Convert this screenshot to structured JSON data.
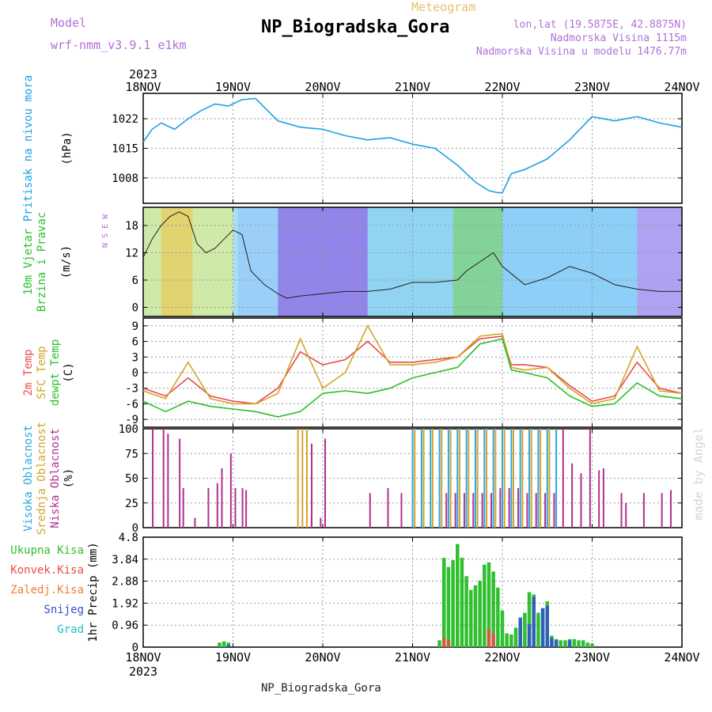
{
  "header": {
    "model_label": "Model",
    "model_name": "wrf-nmm_v3.9.1 e1km",
    "title": "NP_Biogradska_Gora",
    "meteogram_label": "Meteogram",
    "lonlat": "lon,lat (19.5875E, 42.8875N)",
    "elevation": "Nadmorska Visina 1115m",
    "model_elevation": "Nadmorska Visina u modelu 1476.77m",
    "footer_station": "NP_Biogradska_Gora",
    "made_by": "made by Angel"
  },
  "colors": {
    "pressure": "#1ea0e6",
    "temp2m": "#e84b4b",
    "sfc": "#d4a32a",
    "dewpoint": "#28c028",
    "high_cloud": "#2aa8e0",
    "mid_cloud": "#d4a32a",
    "low_cloud": "#b0308f",
    "total_precip": "#2fbf2f",
    "conv_precip": "#e84b4b",
    "freezing_precip": "#f08030",
    "snow": "#3050d0",
    "hail": "#20c0c0",
    "header_purple": "#b070d8",
    "header_gold": "#e8c070"
  },
  "chart_data": {
    "type": "meteogram",
    "x_year": "2023",
    "x_ticks": [
      "18NOV",
      "19NOV",
      "20NOV",
      "21NOV",
      "22NOV",
      "23NOV",
      "24NOV"
    ],
    "x_range_days": [
      0,
      6
    ],
    "panels": [
      {
        "id": "pressure",
        "ylabel": [
          "Pritisak na nivou mora",
          "(hPa)"
        ],
        "yticks": [
          "1008",
          "1015",
          "1022"
        ],
        "ylim": [
          1002,
          1028
        ],
        "series": [
          {
            "name": "Pritisak na nivou mora",
            "x": [
              0,
              0.1,
              0.2,
              0.35,
              0.5,
              0.65,
              0.8,
              0.95,
              1.1,
              1.25,
              1.5,
              1.75,
              2.0,
              2.25,
              2.5,
              2.75,
              3.0,
              3.25,
              3.5,
              3.7,
              3.85,
              3.95,
              4.0,
              4.1,
              4.25,
              4.5,
              4.75,
              5.0,
              5.25,
              5.5,
              5.75,
              6.0
            ],
            "y": [
              1016.5,
              1019.5,
              1021,
              1019.5,
              1022,
              1024,
              1025.5,
              1025,
              1026.5,
              1026.8,
              1021.5,
              1020,
              1019.5,
              1018,
              1017,
              1017.5,
              1016,
              1015,
              1011,
              1007,
              1005,
              1004.5,
              1004.5,
              1009,
              1010,
              1012.5,
              1017,
              1022.5,
              1021.5,
              1022.5,
              1021,
              1020
            ]
          }
        ]
      },
      {
        "id": "wind",
        "ylabel": [
          "10m Vjetar",
          "Brzina i Pravac",
          "(m/s)"
        ],
        "yticks": [
          "0",
          "6",
          "12",
          "18"
        ],
        "ylim": [
          -2,
          22
        ],
        "compass": "N S E W",
        "series": [
          {
            "name": "10m Vjetar",
            "x": [
              0,
              0.1,
              0.2,
              0.3,
              0.4,
              0.5,
              0.6,
              0.7,
              0.8,
              0.9,
              1.0,
              1.1,
              1.2,
              1.35,
              1.5,
              1.6,
              1.75,
              2.0,
              2.25,
              2.5,
              2.75,
              3.0,
              3.25,
              3.5,
              3.6,
              3.75,
              3.9,
              4.0,
              4.25,
              4.5,
              4.75,
              5.0,
              5.25,
              5.5,
              5.75,
              6.0
            ],
            "y": [
              11,
              15,
              18,
              20,
              21,
              20,
              14,
              12,
              13,
              15,
              17,
              16,
              8,
              5,
              3,
              2,
              2.5,
              3,
              3.5,
              3.5,
              4,
              5.5,
              5.5,
              6,
              8,
              10,
              12,
              9,
              5,
              6.5,
              9,
              7.5,
              5,
              4,
              3.5,
              3.5
            ]
          }
        ]
      },
      {
        "id": "temperature",
        "ylabel": [
          "2m Temp",
          "SFC Temp",
          "dewpt Temp",
          "(C)"
        ],
        "yticks": [
          "-9",
          "-6",
          "-3",
          "0",
          "3",
          "6",
          "9"
        ],
        "ylim": [
          -10.5,
          10.5
        ],
        "series": [
          {
            "name": "2m Temp",
            "x": [
              0,
              0.25,
              0.5,
              0.75,
              1.0,
              1.25,
              1.5,
              1.75,
              2.0,
              2.25,
              2.5,
              2.75,
              3.0,
              3.25,
              3.5,
              3.75,
              4.0,
              4.1,
              4.25,
              4.5,
              4.75,
              5.0,
              5.25,
              5.5,
              5.75,
              6.0
            ],
            "y": [
              -3,
              -4.5,
              -1,
              -4.5,
              -5.5,
              -6,
              -3,
              4,
              1.5,
              2.5,
              6,
              2,
              2,
              2.5,
              3,
              6.5,
              7,
              1.5,
              1.5,
              1,
              -2.5,
              -5.5,
              -4.5,
              2,
              -3,
              -4
            ]
          },
          {
            "name": "SFC Temp",
            "x": [
              0,
              0.25,
              0.5,
              0.75,
              1.0,
              1.25,
              1.5,
              1.75,
              2.0,
              2.25,
              2.5,
              2.75,
              3.0,
              3.25,
              3.5,
              3.75,
              4.0,
              4.1,
              4.25,
              4.5,
              4.75,
              5.0,
              5.25,
              5.5,
              5.75,
              6.0
            ],
            "y": [
              -3.5,
              -5,
              2,
              -5,
              -6,
              -6,
              -4,
              6.5,
              -3,
              0,
              9,
              1.5,
              1.5,
              2,
              3,
              7,
              7.5,
              1,
              0.5,
              1,
              -3,
              -6,
              -5,
              5,
              -3.5,
              -4
            ]
          },
          {
            "name": "dewpt Temp",
            "x": [
              0,
              0.25,
              0.5,
              0.75,
              1.0,
              1.25,
              1.5,
              1.75,
              2.0,
              2.25,
              2.5,
              2.75,
              3.0,
              3.25,
              3.5,
              3.75,
              4.0,
              4.1,
              4.25,
              4.5,
              4.75,
              5.0,
              5.25,
              5.5,
              5.75,
              6.0
            ],
            "y": [
              -5.5,
              -7.5,
              -5.5,
              -6.5,
              -7,
              -7.5,
              -8.5,
              -7.5,
              -4,
              -3.5,
              -4,
              -3,
              -1,
              0,
              1,
              5.5,
              6.5,
              0.5,
              0,
              -1,
              -4.5,
              -6.5,
              -6,
              -2,
              -4.5,
              -5
            ]
          }
        ]
      },
      {
        "id": "clouds",
        "ylabel": [
          "Visoka Oblacnost",
          "Srednja Oblacnost",
          "Niska Oblacnost",
          "(%)"
        ],
        "yticks": [
          "0",
          "25",
          "50",
          "75",
          "100"
        ],
        "ylim": [
          0,
          100
        ],
        "series": [
          {
            "name": "Visoka Oblacnost",
            "x": [
              3.0,
              3.1,
              3.2,
              3.3,
              3.4,
              3.5,
              3.6,
              3.7,
              3.8,
              3.9,
              4.0,
              4.1,
              4.2,
              4.3,
              4.4,
              4.5,
              4.6
            ],
            "y": [
              100,
              100,
              100,
              100,
              100,
              100,
              100,
              100,
              100,
              100,
              100,
              100,
              100,
              100,
              100,
              100,
              100
            ]
          },
          {
            "name": "Srednja Oblacnost",
            "x": [
              1.75,
              1.8,
              1.85,
              1.9,
              3.05,
              3.15,
              3.25,
              3.35,
              3.45,
              3.55,
              3.65,
              3.75,
              3.85,
              3.95,
              4.05,
              4.15,
              4.25,
              4.35,
              4.45,
              4.55
            ],
            "y": [
              100,
              100,
              100,
              10,
              100,
              100,
              100,
              100,
              100,
              100,
              100,
              100,
              100,
              100,
              100,
              100,
              100,
              100,
              100,
              100
            ]
          },
          {
            "name": "Niska Oblacnost",
            "x": [
              0.08,
              0.2,
              0.25,
              0.38,
              0.42,
              0.55,
              0.7,
              0.8,
              0.85,
              0.95,
              1.0,
              1.08,
              1.12,
              1.85,
              1.95,
              2.0,
              2.5,
              2.7,
              2.85,
              3.35,
              3.45,
              3.55,
              3.65,
              3.75,
              3.85,
              3.95,
              4.05,
              4.15,
              4.25,
              4.35,
              4.45,
              4.55,
              4.65,
              4.75,
              4.85,
              4.95,
              5.05,
              5.1,
              5.3,
              5.35,
              5.55,
              5.75,
              5.85
            ],
            "y": [
              100,
              100,
              95,
              90,
              40,
              10,
              40,
              45,
              60,
              75,
              40,
              40,
              38,
              85,
              10,
              90,
              35,
              40,
              35,
              35,
              35,
              35,
              35,
              35,
              35,
              40,
              40,
              40,
              35,
              35,
              35,
              35,
              100,
              65,
              55,
              100,
              58,
              60,
              35,
              25,
              35,
              35,
              38
            ]
          }
        ]
      },
      {
        "id": "precip",
        "ylabel": [
          "1hr Precip (mm)"
        ],
        "legend": [
          "Ukupna Kisa",
          "Konvek.Kisa",
          "Zaledj.Kisa",
          "Snijeg",
          "Grad"
        ],
        "yticks": [
          "0",
          "0.96",
          "1.92",
          "2.88",
          "3.84",
          "4.8"
        ],
        "ylim": [
          0,
          4.8
        ],
        "series": [
          {
            "name": "Ukupna Kisa",
            "x": [
              0.85,
              0.9,
              0.95,
              3.3,
              3.35,
              3.4,
              3.45,
              3.5,
              3.55,
              3.6,
              3.65,
              3.7,
              3.75,
              3.8,
              3.85,
              3.9,
              3.95,
              4.0,
              4.05,
              4.1,
              4.15,
              4.2,
              4.25,
              4.3,
              4.35,
              4.4,
              4.45,
              4.5,
              4.55,
              4.6,
              4.65,
              4.7,
              4.75,
              4.8,
              4.85,
              4.9,
              4.95,
              5.0
            ],
            "y": [
              0.2,
              0.25,
              0.2,
              0.3,
              3.9,
              3.5,
              3.8,
              4.5,
              3.9,
              3.1,
              2.5,
              2.7,
              2.9,
              3.6,
              3.7,
              3.3,
              2.6,
              1.6,
              0.6,
              0.55,
              0.85,
              1.2,
              1.5,
              2.4,
              2.3,
              1.5,
              1.7,
              2.0,
              0.5,
              0.35,
              0.3,
              0.3,
              0.35,
              0.35,
              0.3,
              0.3,
              0.2,
              0.15
            ]
          },
          {
            "name": "Konvek.Kisa",
            "x": [
              3.35,
              3.4,
              3.85,
              3.9
            ],
            "y": [
              0.4,
              0.3,
              0.8,
              0.6
            ]
          },
          {
            "name": "Snijeg",
            "x": [
              0.95,
              4.2,
              4.3,
              4.35,
              4.45,
              4.5,
              4.55,
              4.6,
              4.75
            ],
            "y": [
              0.1,
              1.3,
              1.0,
              2.2,
              1.7,
              1.8,
              0.4,
              0.3,
              0.3
            ]
          }
        ]
      }
    ]
  }
}
